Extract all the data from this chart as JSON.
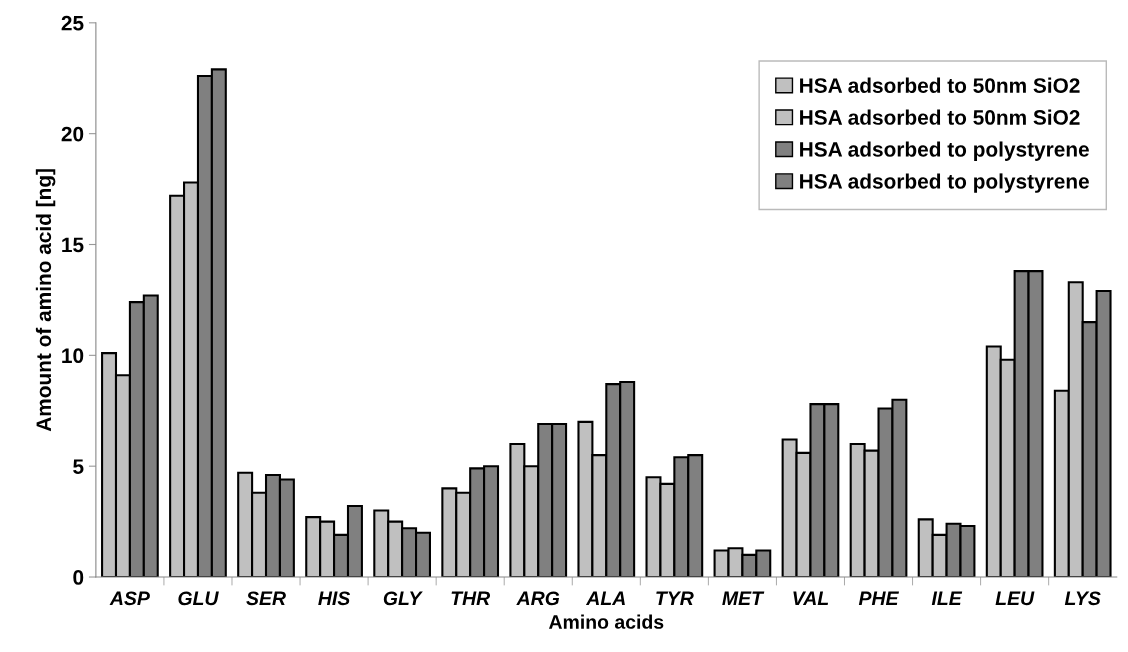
{
  "chart_data": {
    "type": "bar",
    "xlabel": "Amino acids",
    "ylabel": "Amount of amino acid [ng]",
    "categories": [
      "ASP",
      "GLU",
      "SER",
      "HIS",
      "GLY",
      "THR",
      "ARG",
      "ALA",
      "TYR",
      "MET",
      "VAL",
      "PHE",
      "ILE",
      "LEU",
      "LYS"
    ],
    "series": [
      {
        "name": "HSA adsorbed to 50nm SiO2",
        "color": "#c0c0c0",
        "values": [
          10.1,
          17.2,
          4.7,
          2.7,
          3.0,
          4.0,
          6.0,
          7.0,
          4.5,
          1.2,
          6.2,
          6.0,
          2.6,
          10.4,
          8.4
        ]
      },
      {
        "name": "HSA adsorbed to 50nm SiO2",
        "color": "#c0c0c0",
        "values": [
          9.1,
          17.8,
          3.8,
          2.5,
          2.5,
          3.8,
          5.0,
          5.5,
          4.2,
          1.3,
          5.6,
          5.7,
          1.9,
          9.8,
          13.3
        ]
      },
      {
        "name": "HSA adsorbed to polystyrene",
        "color": "#808080",
        "values": [
          12.4,
          22.6,
          4.6,
          1.9,
          2.2,
          4.9,
          6.9,
          8.7,
          5.4,
          1.0,
          7.8,
          7.6,
          2.4,
          13.8,
          11.5
        ]
      },
      {
        "name": "HSA adsorbed to polystyrene",
        "color": "#808080",
        "values": [
          12.7,
          22.9,
          4.4,
          3.2,
          2.0,
          5.0,
          6.9,
          8.8,
          5.5,
          1.2,
          7.8,
          8.0,
          2.3,
          13.8,
          12.9
        ]
      }
    ],
    "ylim": [
      0,
      25
    ],
    "yticks": [
      0,
      5,
      10,
      15,
      20,
      25
    ],
    "grid": false,
    "legend": "top right"
  }
}
